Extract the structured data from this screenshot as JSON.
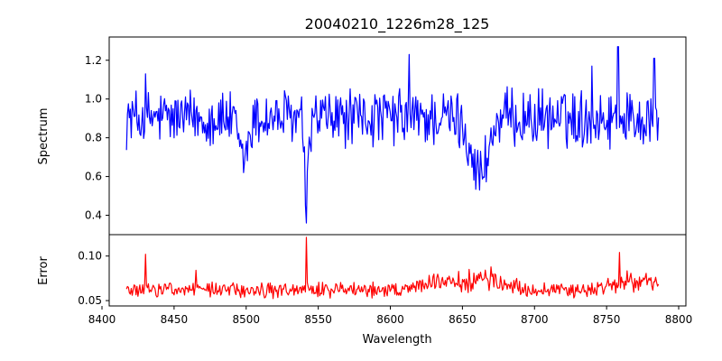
{
  "chart_data": [
    {
      "type": "line",
      "title": "20040210_1226m28_125",
      "xlabel": "",
      "ylabel": "Spectrum",
      "xlim": [
        8405,
        8805
      ],
      "ylim": [
        0.3,
        1.32
      ],
      "yticks": [
        0.4,
        0.6,
        0.8,
        1.0,
        1.2
      ],
      "ytick_labels": [
        "0.4",
        "0.6",
        "0.8",
        "1.0",
        "1.2"
      ],
      "x_range": [
        8417,
        8786
      ],
      "n_points": 560,
      "color": "#0000ff",
      "grid": false,
      "features": {
        "continuum": 0.9,
        "absorption_lines": [
          {
            "center": 8498,
            "min": 0.62
          },
          {
            "center": 8542,
            "min": 0.36
          },
          {
            "center": 8662,
            "min": 0.53
          }
        ],
        "peaks": [
          {
            "x": 8430,
            "y": 1.13
          },
          {
            "x": 8613,
            "y": 1.23
          },
          {
            "x": 8758,
            "y": 1.27
          },
          {
            "x": 8740,
            "y": 1.17
          },
          {
            "x": 8783,
            "y": 1.21
          }
        ]
      }
    },
    {
      "type": "line",
      "title": "",
      "xlabel": "Wavelength",
      "ylabel": "Error",
      "xlim": [
        8405,
        8805
      ],
      "ylim": [
        0.044,
        0.124
      ],
      "yticks": [
        0.05,
        0.1
      ],
      "ytick_labels": [
        "0.05",
        "0.10"
      ],
      "xticks": [
        8400,
        8450,
        8500,
        8550,
        8600,
        8650,
        8700,
        8750,
        8800
      ],
      "xtick_labels": [
        "8400",
        "8450",
        "8500",
        "8550",
        "8600",
        "8650",
        "8700",
        "8750",
        "8800"
      ],
      "x_range": [
        8417,
        8786
      ],
      "n_points": 560,
      "color": "#ff0000",
      "grid": false,
      "features": {
        "baseline": 0.062,
        "peaks": [
          {
            "x": 8430,
            "y": 0.102
          },
          {
            "x": 8465,
            "y": 0.084
          },
          {
            "x": 8542,
            "y": 0.121
          },
          {
            "x": 8759,
            "y": 0.104
          }
        ]
      }
    }
  ]
}
